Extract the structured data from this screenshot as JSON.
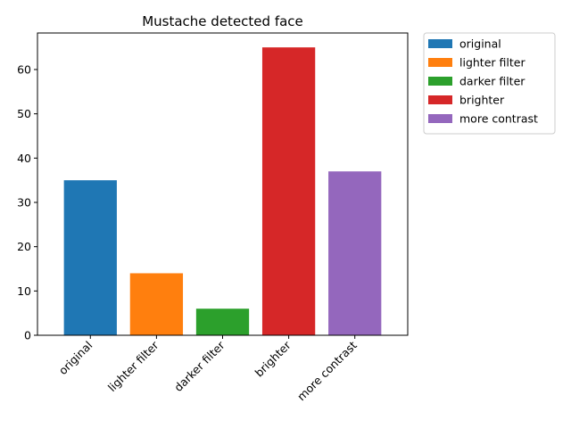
{
  "chart_data": {
    "type": "bar",
    "title": "Mustache detected face",
    "xlabel": "",
    "ylabel": "",
    "categories": [
      "original",
      "lighter filter",
      "darker filter",
      "brighter",
      "more contrast"
    ],
    "values": [
      35,
      14,
      6,
      65,
      37
    ],
    "colors": [
      "#1f77b4",
      "#ff7f0e",
      "#2ca02c",
      "#d62728",
      "#9467bd"
    ],
    "ylim": [
      0,
      68.25
    ],
    "yticks": [
      0,
      10,
      20,
      30,
      40,
      50,
      60
    ],
    "grid": false,
    "legend": {
      "placement": "outside-top-right",
      "entries": [
        {
          "label": "original",
          "color": "#1f77b4"
        },
        {
          "label": "lighter filter",
          "color": "#ff7f0e"
        },
        {
          "label": "darker filter",
          "color": "#2ca02c"
        },
        {
          "label": "brighter",
          "color": "#d62728"
        },
        {
          "label": "more contrast",
          "color": "#9467bd"
        }
      ]
    }
  }
}
